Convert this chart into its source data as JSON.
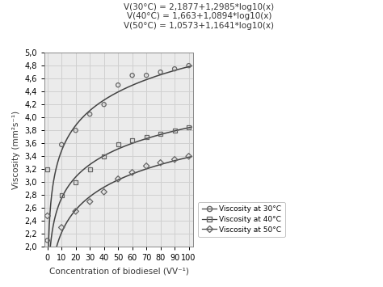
{
  "title_lines": [
    "V(30°C) = 2,1877+1,2985*log10(x)",
    "V(40°C) = 1,663+1,0894*log10(x)",
    "V(50°C) = 1,0573+1,1641*log10(x)"
  ],
  "xlabel": "Concentration of biodiesel (VV⁻¹)",
  "ylabel": "Viscosity (mm²s⁻¹)",
  "xlim": [
    -2,
    103
  ],
  "ylim": [
    2.0,
    5.0
  ],
  "xticks": [
    0,
    10,
    20,
    30,
    40,
    50,
    60,
    70,
    80,
    90,
    100
  ],
  "yticks": [
    2.0,
    2.2,
    2.4,
    2.6,
    2.8,
    3.0,
    3.2,
    3.4,
    3.6,
    3.8,
    4.0,
    4.2,
    4.4,
    4.6,
    4.8,
    5.0
  ],
  "data_30": {
    "x": [
      0,
      10,
      20,
      30,
      40,
      50,
      60,
      70,
      80,
      90,
      100
    ],
    "y": [
      2.1,
      3.58,
      3.8,
      4.05,
      4.2,
      4.5,
      4.65,
      4.65,
      4.7,
      4.75,
      4.8
    ],
    "fit_a": 2.1877,
    "fit_b": 1.2985,
    "marker": "o",
    "label": "Viscosity at 30°C"
  },
  "data_40": {
    "x": [
      0,
      10,
      20,
      30,
      40,
      50,
      60,
      70,
      80,
      90,
      100
    ],
    "y": [
      3.2,
      2.8,
      3.0,
      3.2,
      3.4,
      3.58,
      3.65,
      3.7,
      3.75,
      3.8,
      3.85
    ],
    "fit_a": 1.663,
    "fit_b": 1.0894,
    "marker": "s",
    "label": "Viscosity at 40°C"
  },
  "data_50": {
    "x": [
      0,
      10,
      20,
      30,
      40,
      50,
      60,
      70,
      80,
      90,
      100
    ],
    "y": [
      2.48,
      2.3,
      2.55,
      2.7,
      2.85,
      3.05,
      3.15,
      3.25,
      3.3,
      3.35,
      3.4
    ],
    "fit_a": 1.0573,
    "fit_b": 1.1641,
    "marker": "D",
    "label": "Viscosity at 50°C"
  },
  "grid_color": "#d0d0d0",
  "background_color": "#ebebeb",
  "line_color": "#444444",
  "marker_color": "#666666",
  "text_color": "#333333",
  "title_fontsize": 7.5,
  "label_fontsize": 7.5,
  "tick_fontsize": 7,
  "legend_fontsize": 6.5
}
